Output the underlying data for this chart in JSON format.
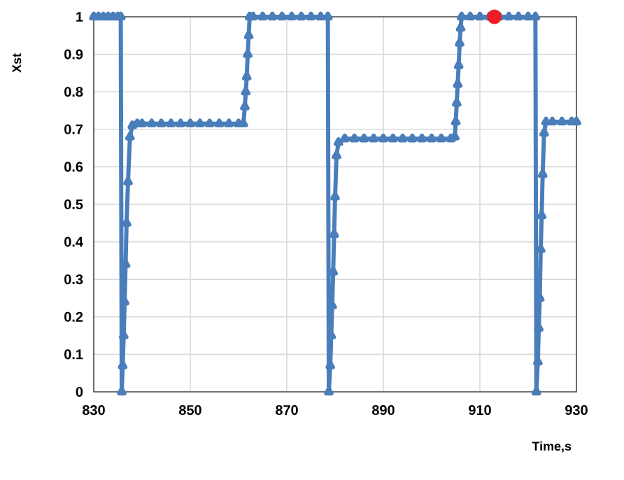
{
  "chart_data": {
    "type": "line",
    "xlabel": "Time,s",
    "ylabel": "Xst",
    "xlim": [
      830,
      930
    ],
    "ylim": [
      0,
      1
    ],
    "xticks": [
      830,
      850,
      870,
      890,
      910,
      930
    ],
    "yticks": [
      0,
      0.1,
      0.2,
      0.3,
      0.4,
      0.5,
      0.6,
      0.7,
      0.8,
      0.9,
      1
    ],
    "grid": true,
    "line_style": "solid",
    "series": [
      {
        "color": "#4a7ebb",
        "marker": "triangle",
        "x": [
          830,
          831,
          832,
          833,
          834,
          835,
          835.6,
          835.8,
          836.0,
          836.2,
          836.4,
          836.6,
          836.8,
          837.1,
          837.5,
          838,
          839,
          840,
          842,
          844,
          846,
          848,
          850,
          852,
          854,
          856,
          858,
          860,
          861,
          861.3,
          861.5,
          861.7,
          861.9,
          862.1,
          862.3,
          863,
          865,
          867,
          869,
          871,
          873,
          875,
          877,
          878.5,
          878.7,
          879,
          879.2,
          879.4,
          879.6,
          879.8,
          880,
          880.3,
          880.7,
          882,
          884,
          886,
          888,
          890,
          892,
          894,
          896,
          898,
          900,
          902,
          904,
          904.8,
          905,
          905.2,
          905.4,
          905.6,
          905.8,
          906,
          906.2,
          908,
          910,
          912,
          914,
          916,
          918,
          920,
          921.5,
          921.7,
          922,
          922.2,
          922.4,
          922.6,
          922.8,
          923,
          923.3,
          923.7,
          925,
          927,
          929,
          930
        ],
        "values": [
          1,
          1,
          1,
          1,
          1,
          1,
          1,
          0,
          0.07,
          0.15,
          0.24,
          0.34,
          0.45,
          0.56,
          0.68,
          0.71,
          0.715,
          0.715,
          0.715,
          0.715,
          0.715,
          0.715,
          0.715,
          0.715,
          0.715,
          0.715,
          0.715,
          0.715,
          0.715,
          0.76,
          0.8,
          0.84,
          0.9,
          0.95,
          1,
          1,
          1,
          1,
          1,
          1,
          1,
          1,
          1,
          1,
          0,
          0.07,
          0.15,
          0.23,
          0.32,
          0.42,
          0.52,
          0.63,
          0.665,
          0.675,
          0.675,
          0.675,
          0.675,
          0.675,
          0.675,
          0.675,
          0.675,
          0.675,
          0.675,
          0.675,
          0.675,
          0.68,
          0.72,
          0.77,
          0.82,
          0.87,
          0.93,
          0.97,
          1,
          1,
          1,
          1,
          1,
          1,
          1,
          1,
          1,
          0,
          0.08,
          0.17,
          0.25,
          0.38,
          0.47,
          0.58,
          0.69,
          0.72,
          0.72,
          0.72,
          0.72,
          0.72
        ]
      },
      {
        "type": "scatter",
        "marker": "circle",
        "color": "#ee1c25",
        "x": [
          913
        ],
        "values": [
          1
        ]
      }
    ]
  }
}
